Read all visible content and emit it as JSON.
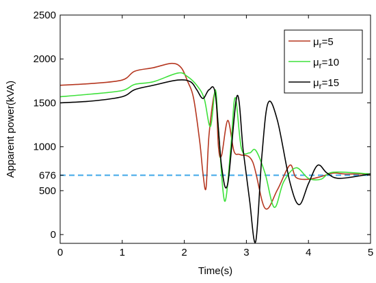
{
  "chart_data": {
    "type": "line",
    "xlabel": "Time(s)",
    "ylabel": "Apparent power(kVA)",
    "xlim": [
      0,
      5
    ],
    "ylim": [
      -100,
      2500
    ],
    "x_ticks": [
      0,
      1,
      2,
      3,
      4,
      5
    ],
    "y_ticks": [
      0,
      500,
      676,
      1000,
      1500,
      2000,
      2500
    ],
    "grid": false,
    "legend_position": "top-right",
    "reference_line": {
      "y": 676,
      "label": "676",
      "color": "#3fa7e8",
      "style": "dashed"
    },
    "series": [
      {
        "name_prefix": "μ",
        "name_sub": "r",
        "name_suffix": "=5",
        "color": "#b5361f",
        "x": [
          0,
          0.5,
          1.0,
          1.2,
          1.5,
          1.8,
          1.95,
          2.05,
          2.15,
          2.25,
          2.3,
          2.35,
          2.4,
          2.5,
          2.55,
          2.6,
          2.7,
          2.8,
          2.9,
          3.1,
          3.3,
          3.5,
          3.7,
          3.8,
          4.0,
          4.2,
          4.4,
          4.6,
          5.0
        ],
        "y": [
          1700,
          1720,
          1760,
          1860,
          1900,
          1950,
          1900,
          1750,
          1550,
          1050,
          700,
          530,
          1150,
          1620,
          1000,
          900,
          1300,
          950,
          910,
          830,
          300,
          510,
          790,
          650,
          630,
          660,
          700,
          690,
          690
        ]
      },
      {
        "name_prefix": "μ",
        "name_sub": "r",
        "name_suffix": "=10",
        "color": "#3de13a",
        "x": [
          0,
          0.5,
          1.0,
          1.2,
          1.5,
          1.9,
          2.05,
          2.2,
          2.32,
          2.42,
          2.5,
          2.55,
          2.65,
          2.75,
          2.82,
          2.92,
          3.05,
          3.15,
          3.3,
          3.45,
          3.6,
          3.8,
          4.0,
          4.2,
          4.4,
          5.0
        ],
        "y": [
          1570,
          1600,
          1640,
          1710,
          1740,
          1840,
          1800,
          1700,
          1550,
          1230,
          1650,
          1200,
          380,
          1000,
          1560,
          980,
          930,
          960,
          700,
          310,
          600,
          760,
          640,
          630,
          710,
          690
        ]
      },
      {
        "name_prefix": "μ",
        "name_sub": "r",
        "name_suffix": "=15",
        "color": "#000000",
        "x": [
          0,
          0.5,
          1.0,
          1.2,
          1.5,
          1.9,
          2.1,
          2.2,
          2.3,
          2.4,
          2.5,
          2.6,
          2.7,
          2.85,
          2.95,
          3.05,
          3.15,
          3.25,
          3.35,
          3.5,
          3.7,
          3.85,
          4.0,
          4.15,
          4.3,
          4.5,
          5.0
        ],
        "y": [
          1500,
          1520,
          1570,
          1650,
          1700,
          1760,
          1740,
          1650,
          1550,
          1650,
          1600,
          780,
          580,
          1580,
          950,
          400,
          -80,
          900,
          1500,
          1300,
          600,
          340,
          580,
          790,
          700,
          640,
          690
        ]
      }
    ]
  }
}
